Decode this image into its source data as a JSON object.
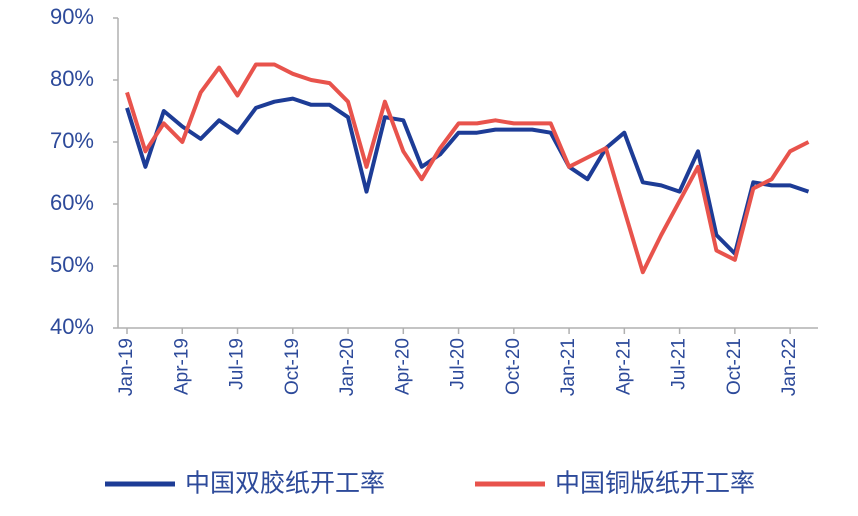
{
  "chart_data": {
    "type": "line",
    "categories": [
      "Jan-19",
      null,
      null,
      "Apr-19",
      null,
      null,
      "Jul-19",
      null,
      null,
      "Oct-19",
      null,
      null,
      "Jan-20",
      null,
      null,
      "Apr-20",
      null,
      null,
      "Jul-20",
      null,
      null,
      "Oct-20",
      null,
      null,
      "Jan-21",
      null,
      null,
      "Apr-21",
      null,
      null,
      "Jul-21",
      null,
      null,
      "Oct-21",
      null,
      null,
      "Jan-22",
      null
    ],
    "series": [
      {
        "name": "中国双胶纸开工率",
        "color": "#1d3c96",
        "values": [
          75.5,
          66,
          75,
          72.5,
          70.5,
          73.5,
          71.5,
          75.5,
          76.5,
          77,
          76,
          76,
          74,
          62,
          74,
          73.5,
          66,
          68,
          71.5,
          71.5,
          72,
          72,
          72,
          71.5,
          66,
          64,
          69,
          71.5,
          63.5,
          63,
          62,
          68.5,
          55,
          52,
          63.5,
          63,
          63,
          62
        ]
      },
      {
        "name": "中国铜版纸开工率",
        "color": "#e8534c",
        "values": [
          78,
          68.5,
          73,
          70,
          78,
          82,
          77.5,
          82.5,
          82.5,
          81,
          80,
          79.5,
          76.5,
          66,
          76.5,
          68.5,
          64,
          69,
          73,
          73,
          73.5,
          73,
          73,
          73,
          66,
          67.5,
          69,
          59,
          49,
          55,
          60.5,
          66,
          52.5,
          51,
          62.5,
          64,
          68.5,
          70
        ]
      }
    ],
    "ylim": [
      40,
      90
    ],
    "yticks": [
      {
        "value": 40,
        "label": "40%"
      },
      {
        "value": 50,
        "label": "50%"
      },
      {
        "value": 60,
        "label": "60%"
      },
      {
        "value": 70,
        "label": "70%"
      },
      {
        "value": 80,
        "label": "80%"
      },
      {
        "value": 90,
        "label": "90%"
      }
    ],
    "grid": false
  }
}
